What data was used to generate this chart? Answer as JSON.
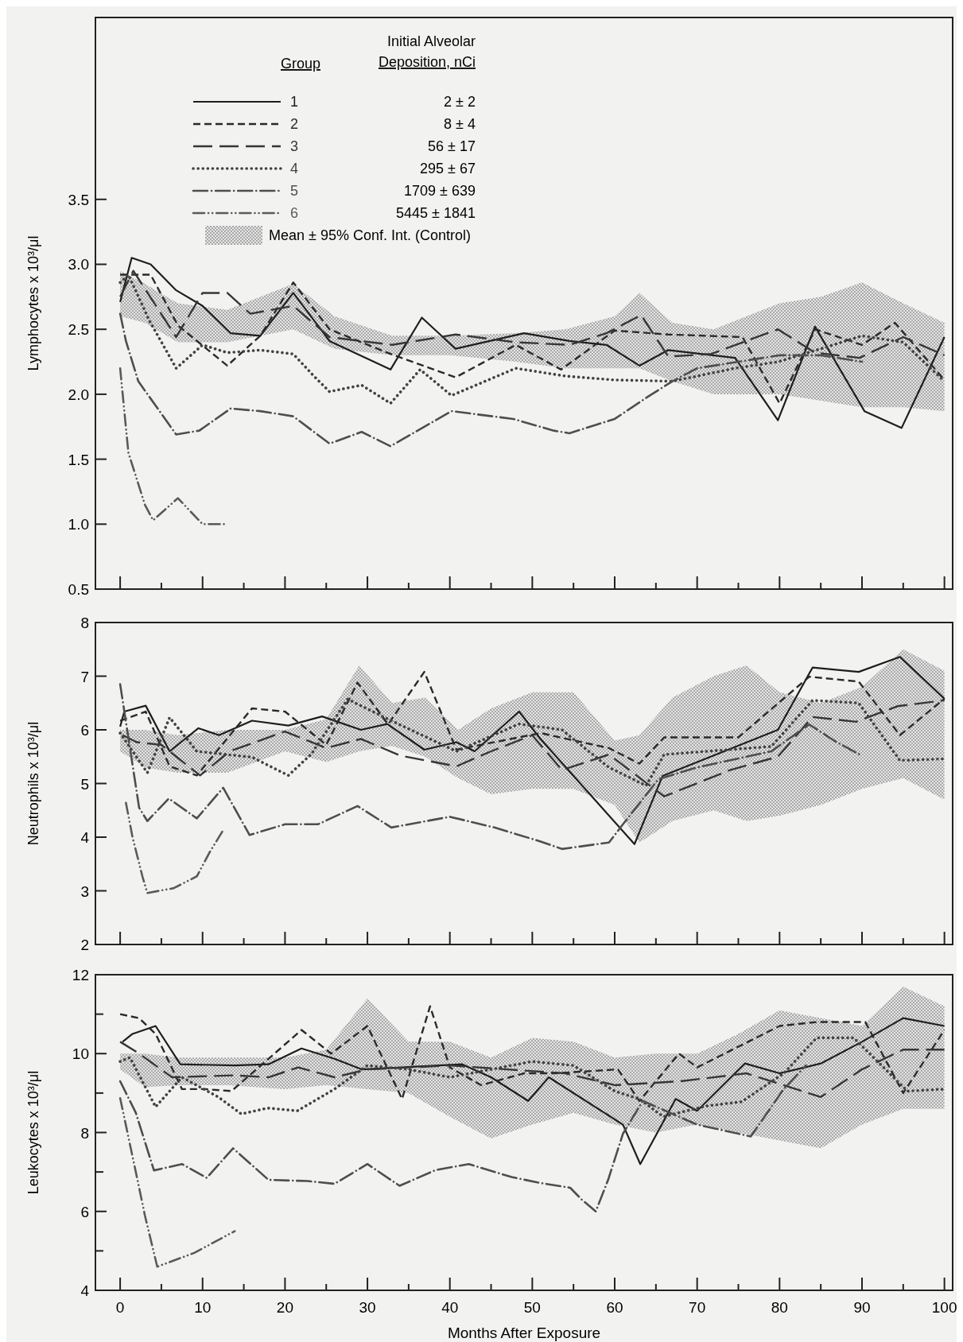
{
  "chart_data": [
    {
      "type": "line",
      "ylabel": "Lymphocytes x 10³/μl",
      "legend": "top",
      "legend_title": "Group",
      "tick_labels": "y",
      "annotations": [
        "Initial Alveolar Deposition, nCi",
        "2 ± 2",
        "8 ± 4",
        "56 ± 17",
        "295 ± 67",
        "1709 ± 639",
        "5445 ± 1841"
      ],
      "xlim": [
        -3,
        101
      ],
      "xticks": [
        0,
        {
          "value": 5,
          "label": null
        },
        10,
        {
          "value": 15,
          "label": null
        },
        20,
        {
          "value": 25,
          "label": null
        },
        30,
        {
          "value": 35,
          "label": null
        },
        40,
        {
          "value": 45,
          "label": null
        },
        50,
        {
          "value": 55,
          "label": null
        },
        60,
        {
          "value": 65,
          "label": null
        },
        70,
        {
          "value": 75,
          "label": null
        },
        80,
        {
          "value": 85,
          "label": null
        },
        90,
        {
          "value": 95,
          "label": null
        },
        100
      ],
      "ylim": [
        0.5,
        4.9
      ],
      "yticks": [
        {
          "value": 0.5,
          "label": "0.5"
        },
        {
          "value": 1,
          "label": "1.0"
        },
        {
          "value": 1.5,
          "label": "1.5"
        },
        {
          "value": 2,
          "label": "2.0"
        },
        {
          "value": 2.5,
          "label": "2.5"
        },
        {
          "value": 3,
          "label": "3.0"
        },
        {
          "value": 3.5,
          "label": "3.5"
        }
      ],
      "series": [
        {
          "name": "Mean ± 95% Conf. Int. (Control)",
          "type": "area",
          "color": "#8c8c8c",
          "x": [
            0,
            3,
            7,
            13,
            21,
            26,
            33,
            40,
            48,
            54,
            60,
            63,
            67,
            72,
            76,
            80,
            85,
            90,
            95,
            100
          ],
          "values": [
            null,
            null,
            null,
            null,
            null,
            null,
            null,
            null,
            null,
            null,
            null,
            null,
            null,
            null,
            null,
            null,
            null,
            null,
            null,
            null
          ],
          "lower": [
            2.6,
            2.55,
            2.4,
            2.4,
            2.5,
            2.35,
            2.3,
            2.3,
            2.25,
            2.2,
            2.2,
            2.2,
            2.1,
            2.0,
            2.0,
            2.0,
            1.95,
            1.9,
            1.9,
            1.87
          ],
          "upper": [
            2.95,
            2.85,
            2.7,
            2.65,
            2.85,
            2.6,
            2.45,
            2.45,
            2.47,
            2.5,
            2.6,
            2.78,
            2.55,
            2.5,
            2.6,
            2.7,
            2.75,
            2.86,
            2.7,
            2.55
          ]
        },
        {
          "name": "1",
          "line_style": "solid",
          "color": "#1e1e1e",
          "x": [
            0,
            1.4,
            3.7,
            6.8,
            10,
            13.4,
            17,
            21,
            25.4,
            32.8,
            36.6,
            40.7,
            49,
            54.5,
            59,
            63,
            66.5,
            74.6,
            79.8,
            84.3,
            90.3,
            94.8,
            100
          ],
          "values": [
            2.71,
            3.05,
            3.0,
            2.8,
            2.68,
            2.47,
            2.45,
            2.78,
            2.41,
            2.19,
            2.59,
            2.35,
            2.47,
            2.41,
            2.38,
            2.22,
            2.34,
            2.28,
            1.8,
            2.52,
            1.87,
            1.74,
            2.44
          ]
        },
        {
          "name": "2",
          "line_style": "dashed",
          "color": "#2a2a2a",
          "x": [
            0,
            3.7,
            7,
            13,
            17,
            21,
            25.4,
            32.8,
            40.7,
            48,
            53.5,
            60,
            66.5,
            75.5,
            80,
            84.3,
            90,
            94,
            100
          ],
          "values": [
            2.92,
            2.92,
            2.53,
            2.22,
            2.45,
            2.86,
            2.5,
            2.31,
            2.13,
            2.38,
            2.19,
            2.49,
            2.46,
            2.44,
            1.93,
            2.5,
            2.38,
            2.55,
            2.11
          ]
        },
        {
          "name": "3",
          "line_style": "longdash",
          "color": "#363636",
          "x": [
            0,
            1.6,
            6.8,
            10,
            13,
            15.8,
            21,
            25.4,
            33,
            40.7,
            48,
            54.5,
            59,
            63.2,
            66.5,
            71.7,
            79.8,
            84.3,
            89.7,
            95,
            100
          ],
          "values": [
            2.75,
            2.95,
            2.44,
            2.78,
            2.78,
            2.62,
            2.68,
            2.44,
            2.38,
            2.46,
            2.4,
            2.38,
            2.47,
            2.61,
            2.29,
            2.31,
            2.5,
            2.32,
            2.28,
            2.44,
            2.3
          ]
        },
        {
          "name": "4",
          "line_style": "dotted",
          "color": "#424242",
          "x": [
            0,
            1,
            3.6,
            6.8,
            10,
            13,
            17,
            21,
            23.5,
            25.4,
            29.3,
            32.8,
            36.4,
            40.2,
            48,
            54,
            60,
            67,
            74.6,
            79.8,
            85,
            90,
            95,
            100
          ],
          "values": [
            2.86,
            2.92,
            2.56,
            2.2,
            2.38,
            2.32,
            2.34,
            2.31,
            2.14,
            2.02,
            2.07,
            1.93,
            2.19,
            1.99,
            2.2,
            2.14,
            2.11,
            2.1,
            2.2,
            2.25,
            2.35,
            2.45,
            2.4,
            2.1
          ]
        },
        {
          "name": "5",
          "line_style": "dashdot",
          "color": "#4e4e4e",
          "x": [
            0,
            0.7,
            2.2,
            6.8,
            9.6,
            13.4,
            17,
            21,
            25.4,
            29.3,
            32.8,
            40.2,
            47.7,
            52.6,
            54.5,
            58,
            60,
            64,
            67,
            70,
            75,
            80,
            85,
            90
          ],
          "values": [
            2.62,
            2.41,
            2.1,
            1.69,
            1.72,
            1.89,
            1.87,
            1.83,
            1.62,
            1.71,
            1.6,
            1.87,
            1.81,
            1.72,
            1.7,
            1.77,
            1.81,
            1.98,
            2.1,
            2.2,
            2.25,
            2.3,
            2.3,
            2.25
          ]
        },
        {
          "name": "6",
          "line_style": "dashdotdot",
          "color": "#5a5a5a",
          "x": [
            0,
            1,
            3,
            4,
            7,
            10,
            13
          ],
          "values": [
            2.2,
            1.55,
            1.15,
            1.03,
            1.2,
            1.0,
            1.0
          ]
        }
      ]
    },
    {
      "type": "line",
      "ylabel": "Neutrophils x 10³/μl",
      "tick_labels": "y",
      "xlim": [
        -3,
        101
      ],
      "xticks": [
        0,
        {
          "value": 5,
          "label": null
        },
        10,
        {
          "value": 15,
          "label": null
        },
        20,
        {
          "value": 25,
          "label": null
        },
        30,
        {
          "value": 35,
          "label": null
        },
        40,
        {
          "value": 45,
          "label": null
        },
        50,
        {
          "value": 55,
          "label": null
        },
        60,
        {
          "value": 65,
          "label": null
        },
        70,
        {
          "value": 75,
          "label": null
        },
        80,
        {
          "value": 85,
          "label": null
        },
        90,
        {
          "value": 95,
          "label": null
        },
        100
      ],
      "ylim": [
        2,
        8
      ],
      "yticks": [
        2,
        3,
        4,
        5,
        6,
        7,
        8
      ],
      "series": [
        {
          "type": "area",
          "color": "#8c8c8c",
          "x": [
            0,
            3,
            7,
            13,
            20,
            25,
            29,
            33,
            37,
            41,
            45,
            50,
            55,
            60,
            63,
            67,
            72,
            76,
            80,
            85,
            90,
            95,
            100
          ],
          "values": [
            null,
            null,
            null,
            null,
            null,
            null,
            null,
            null,
            null,
            null,
            null,
            null,
            null,
            null,
            null,
            null,
            null,
            null,
            null,
            null,
            null,
            null,
            null
          ],
          "lower": [
            5.6,
            5.3,
            5.2,
            5.2,
            5.6,
            5.4,
            5.6,
            5.7,
            5.5,
            5.1,
            4.8,
            4.9,
            4.9,
            4.6,
            3.9,
            4.3,
            4.5,
            4.3,
            4.4,
            4.6,
            4.9,
            5.1,
            4.7
          ],
          "upper": [
            6.0,
            6.0,
            5.9,
            6.0,
            6.0,
            6.2,
            7.2,
            6.5,
            6.6,
            6.0,
            6.4,
            6.7,
            6.7,
            5.8,
            5.9,
            6.6,
            7.0,
            7.2,
            6.7,
            6.5,
            6.8,
            7.5,
            7.1
          ]
        },
        {
          "line_style": "solid",
          "color": "#1e1e1e",
          "x": [
            0,
            0.5,
            3.1,
            6,
            9.5,
            12,
            16,
            20.4,
            24.5,
            29.2,
            32.4,
            36.9,
            40.8,
            43,
            48.4,
            51,
            62.4,
            65.8,
            79.8,
            84,
            89.6,
            94.6,
            100
          ],
          "values": [
            6.06,
            6.34,
            6.45,
            5.6,
            6.03,
            5.9,
            6.17,
            6.08,
            6.25,
            6.0,
            6.11,
            5.63,
            5.77,
            5.6,
            6.34,
            5.83,
            3.87,
            5.14,
            6.0,
            7.16,
            7.08,
            7.36,
            6.58
          ]
        },
        {
          "line_style": "dashed",
          "color": "#2a2a2a",
          "x": [
            0,
            3.1,
            6,
            9.3,
            16,
            20,
            25,
            28.8,
            32.5,
            36.9,
            40.8,
            51,
            59.3,
            63,
            66,
            75,
            83.6,
            89.6,
            94.6,
            100
          ],
          "values": [
            6.17,
            6.34,
            5.32,
            5.15,
            6.4,
            6.34,
            5.72,
            6.88,
            6.1,
            7.08,
            5.63,
            5.94,
            5.66,
            5.37,
            5.86,
            5.86,
            6.99,
            6.9,
            5.9,
            6.58
          ]
        },
        {
          "line_style": "longdash",
          "color": "#363636",
          "x": [
            0.3,
            2,
            5,
            9.7,
            13.3,
            20,
            25,
            29.2,
            34,
            40.8,
            45,
            50,
            53.6,
            59.3,
            66,
            74,
            79.8,
            84,
            89.3,
            94.3,
            100
          ],
          "values": [
            5.9,
            5.77,
            5.72,
            5.15,
            5.6,
            5.97,
            5.66,
            5.83,
            5.52,
            5.32,
            5.6,
            5.9,
            5.25,
            5.54,
            4.76,
            5.25,
            5.5,
            6.24,
            6.15,
            6.44,
            6.55
          ]
        },
        {
          "line_style": "dotted",
          "color": "#424242",
          "x": [
            0,
            3.3,
            6,
            9.3,
            16,
            20.4,
            23.2,
            27.6,
            32.9,
            40.8,
            48.4,
            53.6,
            59.3,
            63.8,
            66,
            79,
            84,
            89.6,
            94.6,
            100
          ],
          "values": [
            5.94,
            5.2,
            6.23,
            5.6,
            5.49,
            5.15,
            5.55,
            6.57,
            6.17,
            5.6,
            6.11,
            6.0,
            5.3,
            4.96,
            5.54,
            5.69,
            6.55,
            6.5,
            5.43,
            5.46
          ]
        },
        {
          "line_style": "dashdot",
          "color": "#4e4e4e",
          "x": [
            0,
            2.3,
            3.3,
            5.9,
            9.3,
            12.5,
            15.7,
            20,
            24,
            28.8,
            32.9,
            40,
            45.4,
            51,
            53.6,
            59.3,
            61,
            65.3,
            70,
            79,
            83.6,
            86.6,
            89.7
          ],
          "values": [
            6.85,
            4.55,
            4.3,
            4.72,
            4.35,
            4.92,
            4.04,
            4.24,
            4.24,
            4.58,
            4.18,
            4.38,
            4.18,
            3.92,
            3.78,
            3.9,
            4.24,
            5.08,
            5.3,
            5.6,
            6.1,
            5.8,
            5.54
          ]
        },
        {
          "line_style": "dashdotdot",
          "color": "#5a5a5a",
          "x": [
            0.7,
            1.5,
            2.7,
            3.3,
            6.5,
            9.3,
            10.9,
            12.5
          ],
          "values": [
            4.64,
            4.0,
            3.27,
            2.96,
            3.05,
            3.27,
            3.73,
            4.13
          ]
        }
      ]
    },
    {
      "type": "line",
      "ylabel": "Leukocytes x 10³/μl",
      "xlabel": "Months After Exposure",
      "xlim": [
        -3,
        101
      ],
      "xticks": [
        0,
        {
          "value": 5,
          "label": null
        },
        10,
        {
          "value": 15,
          "label": null
        },
        20,
        {
          "value": 25,
          "label": null
        },
        30,
        {
          "value": 35,
          "label": null
        },
        40,
        {
          "value": 45,
          "label": null
        },
        50,
        {
          "value": 55,
          "label": null
        },
        60,
        {
          "value": 65,
          "label": null
        },
        70,
        {
          "value": 75,
          "label": null
        },
        80,
        {
          "value": 85,
          "label": null
        },
        90,
        {
          "value": 95,
          "label": null
        },
        100
      ],
      "ylim": [
        4,
        12
      ],
      "yticks": [
        4,
        {
          "value": 5,
          "label": null
        },
        6,
        {
          "value": 7,
          "label": null
        },
        8,
        {
          "value": 9,
          "label": null
        },
        10,
        {
          "value": 11,
          "label": null
        },
        12
      ],
      "series": [
        {
          "type": "area",
          "color": "#8c8c8c",
          "x": [
            0,
            3,
            7,
            13,
            20,
            25,
            30,
            35,
            40,
            45,
            50,
            55,
            60,
            65,
            70,
            75,
            80,
            85,
            90,
            95,
            100
          ],
          "values": [
            null,
            null,
            null,
            null,
            null,
            null,
            null,
            null,
            null,
            null,
            null,
            null,
            null,
            null,
            null,
            null,
            null,
            null,
            null,
            null,
            null
          ],
          "lower": [
            9.6,
            9.15,
            9.2,
            9.2,
            9.1,
            9.2,
            9.1,
            9.0,
            8.4,
            7.85,
            8.2,
            8.5,
            8.2,
            8.0,
            8.2,
            8.0,
            7.8,
            7.6,
            8.2,
            8.6,
            8.6
          ],
          "upper": [
            10.0,
            10.0,
            9.9,
            9.9,
            9.9,
            10.1,
            11.4,
            10.3,
            10.3,
            9.9,
            10.4,
            10.3,
            9.9,
            10.0,
            10.0,
            10.5,
            11.1,
            10.9,
            10.7,
            11.7,
            11.2
          ]
        },
        {
          "line_style": "solid",
          "color": "#1e1e1e",
          "x": [
            0.3,
            1.5,
            4.3,
            7.3,
            13.9,
            18,
            22,
            26,
            29.3,
            41.5,
            45,
            49.5,
            52,
            61,
            63.1,
            67.4,
            70,
            75.8,
            80,
            85,
            90,
            95,
            100
          ],
          "values": [
            10.3,
            10.5,
            10.7,
            9.73,
            9.7,
            9.73,
            10.13,
            9.87,
            9.6,
            9.73,
            9.4,
            8.8,
            9.4,
            8.2,
            7.2,
            8.85,
            8.55,
            9.75,
            9.5,
            9.75,
            10.3,
            10.9,
            10.7
          ]
        },
        {
          "line_style": "dashed",
          "color": "#2a2a2a",
          "x": [
            0,
            2.3,
            4.3,
            7.5,
            10.3,
            13.5,
            17.9,
            22,
            25.6,
            30,
            34.2,
            37.6,
            40,
            43.8,
            49,
            52.6,
            60.4,
            63,
            67.8,
            70,
            80,
            84.5,
            90.4,
            95,
            100
          ],
          "values": [
            11.0,
            10.9,
            10.5,
            9.1,
            9.1,
            9.05,
            9.85,
            10.6,
            10.0,
            10.7,
            8.85,
            11.2,
            9.65,
            9.2,
            9.5,
            9.5,
            9.6,
            8.8,
            10.0,
            9.65,
            10.7,
            10.8,
            10.8,
            9.0,
            10.6
          ]
        },
        {
          "line_style": "longdash",
          "color": "#363636",
          "x": [
            0,
            2.3,
            6.3,
            13.9,
            18,
            21.6,
            26,
            30,
            40,
            47,
            54,
            60,
            68,
            76,
            85,
            90,
            95,
            100
          ],
          "values": [
            10.3,
            10.0,
            9.4,
            9.45,
            9.4,
            9.65,
            9.4,
            9.6,
            9.7,
            9.6,
            9.5,
            9.2,
            9.3,
            9.5,
            8.9,
            9.6,
            10.1,
            10.1
          ]
        },
        {
          "line_style": "dotted",
          "color": "#424242",
          "x": [
            0,
            1.2,
            4.3,
            7.5,
            11.9,
            14.7,
            17.9,
            21.5,
            26,
            30,
            35,
            40,
            45,
            50,
            55,
            60,
            63,
            65.9,
            71,
            75.4,
            80.5,
            84.5,
            89,
            95.5,
            100
          ],
          "values": [
            9.8,
            9.9,
            8.65,
            9.4,
            8.9,
            8.47,
            8.62,
            8.55,
            9.1,
            9.7,
            9.6,
            9.4,
            9.6,
            9.8,
            9.7,
            9.05,
            8.85,
            8.4,
            8.67,
            8.78,
            9.5,
            10.4,
            10.4,
            9.05,
            9.1
          ]
        },
        {
          "line_style": "dashdot",
          "color": "#4e4e4e",
          "x": [
            0,
            1.9,
            4.1,
            7.5,
            10.5,
            13.7,
            18,
            22.7,
            26,
            30,
            33.9,
            38.3,
            42.3,
            47.5,
            51,
            54.6,
            56,
            57.7,
            59.2,
            61,
            63.4,
            70,
            76.5,
            80.5,
            83.2
          ],
          "values": [
            9.3,
            8.5,
            7.04,
            7.2,
            6.85,
            7.6,
            6.8,
            6.77,
            6.7,
            7.2,
            6.65,
            7.05,
            7.2,
            6.87,
            6.72,
            6.6,
            6.3,
            6.0,
            6.8,
            7.97,
            8.8,
            8.2,
            7.9,
            9.1,
            9.7
          ]
        },
        {
          "line_style": "dashdotdot",
          "color": "#5a5a5a",
          "x": [
            0,
            1.9,
            3,
            4.5,
            9,
            13.9
          ],
          "values": [
            8.87,
            7.0,
            5.9,
            4.6,
            4.95,
            5.5
          ]
        }
      ]
    }
  ]
}
